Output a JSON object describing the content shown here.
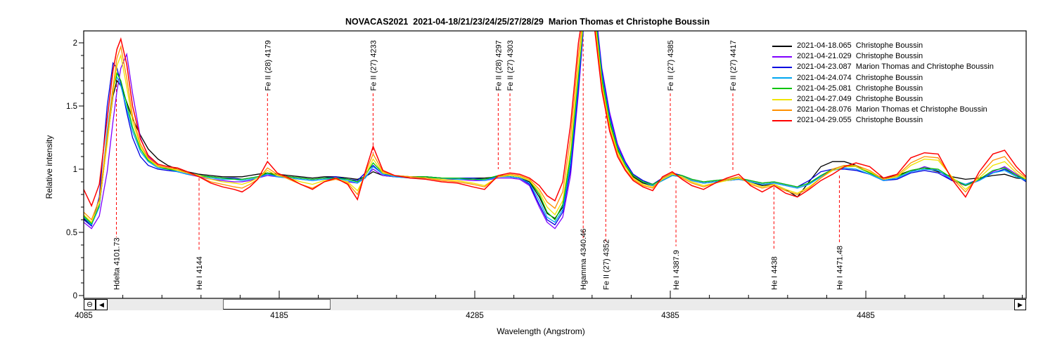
{
  "title": "NOVACAS2021  2021-04-18/21/23/24/25/27/28/29  Marion Thomas et Christophe Boussin",
  "y_axis": {
    "label": "Relative intensity",
    "ticks": [
      0,
      0.5,
      1,
      1.5,
      2
    ]
  },
  "x_axis": {
    "label": "Wavelength (Angstrom)",
    "ticks": [
      4085,
      4185,
      4285,
      4385,
      4485
    ]
  },
  "legend": {
    "entries": [
      {
        "text": "2021-04-18.065  Christophe Boussin",
        "color": "#000000"
      },
      {
        "text": "2021-04-21.029  Christophe Boussin",
        "color": "#7f00ff"
      },
      {
        "text": "2021-04-23.087  Marion Thomas and Christophe Boussin",
        "color": "#0000e0"
      },
      {
        "text": "2021-04-24.074  Christophe Boussin",
        "color": "#00a6f0"
      },
      {
        "text": "2021-04-25.081  Christophe Boussin",
        "color": "#00c400"
      },
      {
        "text": "2021-04-27.049  Christophe Boussin",
        "color": "#efe400"
      },
      {
        "text": "2021-04-28.076  Marion Thomas et Christophe Boussin",
        "color": "#ff9000"
      },
      {
        "text": "2021-04-29.055  Christophe Boussin",
        "color": "#ff0000"
      }
    ]
  },
  "scrollbar": {
    "zoom_out_glyph": "⊖",
    "left_glyph": "◀",
    "right_glyph": "▶"
  },
  "chart_data": {
    "type": "line",
    "title": "NOVACAS2021  2021-04-18/21/23/24/25/27/28/29  Marion Thomas et Christophe Boussin",
    "xlabel": "Wavelength (Angstrom)",
    "ylabel": "Relative intensity",
    "xlim": [
      4085,
      4567
    ],
    "ylim": [
      0,
      2.09
    ],
    "x_minor_step": 20,
    "x_major_step": 100,
    "y_minor_step": 0.1,
    "y_major_step": 0.5,
    "grid": false,
    "legend_position": "upper right",
    "x": [
      4085,
      4089,
      4093,
      4097,
      4100,
      4102,
      4104,
      4107,
      4110,
      4114,
      4118,
      4123,
      4128,
      4133,
      4138,
      4144,
      4150,
      4156,
      4162,
      4166,
      4170,
      4174,
      4179,
      4184,
      4190,
      4196,
      4202,
      4208,
      4214,
      4220,
      4225,
      4229,
      4233,
      4238,
      4244,
      4252,
      4260,
      4268,
      4276,
      4284,
      4290,
      4297,
      4303,
      4308,
      4313,
      4318,
      4322,
      4326,
      4330,
      4334,
      4338,
      4342,
      4346,
      4350,
      4354,
      4358,
      4362,
      4366,
      4371,
      4376,
      4381,
      4386,
      4391,
      4396,
      4402,
      4408,
      4414,
      4420,
      4426,
      4432,
      4438,
      4444,
      4450,
      4456,
      4462,
      4468,
      4474,
      4480,
      4487,
      4494,
      4501,
      4508,
      4515,
      4522,
      4529,
      4536,
      4543,
      4550,
      4556,
      4562,
      4567
    ],
    "series": [
      {
        "name": "2021-04-18.065  Christophe Boussin",
        "color": "#000000",
        "width": 1.3,
        "values": [
          0.61,
          0.56,
          0.71,
          1.22,
          1.58,
          1.7,
          1.66,
          1.53,
          1.4,
          1.27,
          1.16,
          1.08,
          1.03,
          1.0,
          0.98,
          0.96,
          0.95,
          0.94,
          0.94,
          0.94,
          0.95,
          0.96,
          0.97,
          0.96,
          0.95,
          0.94,
          0.93,
          0.94,
          0.94,
          0.93,
          0.92,
          0.94,
          0.98,
          0.95,
          0.94,
          0.94,
          0.94,
          0.93,
          0.93,
          0.93,
          0.93,
          0.94,
          0.94,
          0.93,
          0.9,
          0.78,
          0.65,
          0.61,
          0.7,
          1.05,
          1.7,
          2.4,
          2.28,
          1.7,
          1.36,
          1.15,
          1.02,
          0.94,
          0.89,
          0.87,
          0.91,
          0.95,
          0.94,
          0.91,
          0.89,
          0.9,
          0.91,
          0.92,
          0.9,
          0.87,
          0.88,
          0.84,
          0.78,
          0.9,
          1.02,
          1.06,
          1.06,
          1.03,
          0.97,
          0.93,
          0.95,
          0.99,
          1.01,
          0.98,
          0.94,
          0.92,
          0.93,
          0.95,
          0.96,
          0.93,
          0.92
        ]
      },
      {
        "name": "2021-04-21.029  Christophe Boussin",
        "color": "#7f00ff",
        "width": 1.3,
        "values": [
          0.58,
          0.53,
          0.63,
          0.98,
          1.38,
          1.62,
          1.8,
          1.91,
          1.6,
          1.25,
          1.1,
          1.03,
          1.0,
          0.98,
          0.96,
          0.94,
          0.92,
          0.91,
          0.9,
          0.9,
          0.91,
          0.93,
          0.95,
          0.94,
          0.93,
          0.92,
          0.91,
          0.92,
          0.92,
          0.9,
          0.89,
          0.94,
          1.0,
          0.95,
          0.94,
          0.93,
          0.93,
          0.92,
          0.92,
          0.91,
          0.91,
          0.93,
          0.93,
          0.92,
          0.87,
          0.7,
          0.58,
          0.53,
          0.62,
          0.95,
          1.6,
          2.4,
          2.38,
          1.8,
          1.45,
          1.2,
          1.06,
          0.96,
          0.91,
          0.88,
          0.92,
          0.96,
          0.94,
          0.91,
          0.89,
          0.9,
          0.91,
          0.92,
          0.9,
          0.88,
          0.89,
          0.87,
          0.85,
          0.88,
          0.95,
          0.99,
          1.01,
          1.0,
          0.96,
          0.91,
          0.93,
          0.98,
          1.02,
          0.99,
          0.91,
          0.87,
          0.91,
          0.98,
          1.02,
          0.96,
          0.91
        ]
      },
      {
        "name": "2021-04-23.087  Marion Thomas and Christophe Boussin",
        "color": "#0000e0",
        "width": 1.3,
        "values": [
          0.6,
          0.55,
          0.78,
          1.5,
          1.84,
          1.8,
          1.68,
          1.45,
          1.25,
          1.1,
          1.03,
          1.0,
          0.99,
          0.98,
          0.96,
          0.95,
          0.94,
          0.93,
          0.93,
          0.92,
          0.93,
          0.94,
          0.96,
          0.95,
          0.94,
          0.93,
          0.92,
          0.93,
          0.94,
          0.92,
          0.91,
          0.97,
          1.03,
          0.96,
          0.95,
          0.94,
          0.94,
          0.93,
          0.93,
          0.93,
          0.92,
          0.94,
          0.94,
          0.93,
          0.88,
          0.72,
          0.6,
          0.56,
          0.66,
          1.0,
          1.65,
          2.4,
          2.35,
          1.78,
          1.42,
          1.18,
          1.05,
          0.96,
          0.91,
          0.88,
          0.93,
          0.97,
          0.95,
          0.92,
          0.9,
          0.91,
          0.92,
          0.93,
          0.91,
          0.89,
          0.9,
          0.88,
          0.86,
          0.91,
          0.98,
          1.0,
          1.0,
          0.99,
          0.96,
          0.91,
          0.92,
          0.97,
          0.99,
          0.97,
          0.91,
          0.88,
          0.92,
          0.97,
          1.0,
          0.95,
          0.9
        ]
      },
      {
        "name": "2021-04-24.074  Christophe Boussin",
        "color": "#00a6f0",
        "width": 1.3,
        "values": [
          0.62,
          0.56,
          0.7,
          1.3,
          1.65,
          1.73,
          1.66,
          1.48,
          1.3,
          1.14,
          1.06,
          1.01,
          1.0,
          0.98,
          0.96,
          0.95,
          0.93,
          0.92,
          0.92,
          0.91,
          0.92,
          0.93,
          0.96,
          0.94,
          0.93,
          0.92,
          0.91,
          0.92,
          0.93,
          0.91,
          0.89,
          0.93,
          1.02,
          0.96,
          0.94,
          0.93,
          0.93,
          0.93,
          0.92,
          0.92,
          0.91,
          0.94,
          0.94,
          0.93,
          0.89,
          0.75,
          0.62,
          0.58,
          0.68,
          1.05,
          1.7,
          2.4,
          2.32,
          1.75,
          1.4,
          1.17,
          1.04,
          0.95,
          0.9,
          0.87,
          0.91,
          0.95,
          0.94,
          0.91,
          0.89,
          0.9,
          0.91,
          0.92,
          0.9,
          0.88,
          0.89,
          0.87,
          0.85,
          0.88,
          0.94,
          0.99,
          1.01,
          1.0,
          0.96,
          0.91,
          0.93,
          0.98,
          1.0,
          0.99,
          0.92,
          0.88,
          0.91,
          0.97,
          0.99,
          0.94,
          0.91
        ]
      },
      {
        "name": "2021-04-25.081  Christophe Boussin",
        "color": "#00c400",
        "width": 1.3,
        "values": [
          0.63,
          0.57,
          0.72,
          1.25,
          1.62,
          1.76,
          1.7,
          1.52,
          1.33,
          1.16,
          1.07,
          1.02,
          1.0,
          0.99,
          0.97,
          0.95,
          0.94,
          0.93,
          0.92,
          0.92,
          0.93,
          0.94,
          0.97,
          0.95,
          0.94,
          0.93,
          0.92,
          0.93,
          0.93,
          0.92,
          0.9,
          0.95,
          1.05,
          0.97,
          0.95,
          0.94,
          0.94,
          0.93,
          0.93,
          0.92,
          0.92,
          0.95,
          0.95,
          0.94,
          0.91,
          0.8,
          0.66,
          0.6,
          0.72,
          1.1,
          1.75,
          2.4,
          2.3,
          1.72,
          1.38,
          1.16,
          1.03,
          0.95,
          0.9,
          0.88,
          0.92,
          0.96,
          0.95,
          0.92,
          0.9,
          0.91,
          0.92,
          0.93,
          0.91,
          0.89,
          0.9,
          0.88,
          0.86,
          0.89,
          0.95,
          1.0,
          1.03,
          1.02,
          0.97,
          0.92,
          0.94,
          0.99,
          1.01,
          1.0,
          0.93,
          0.87,
          0.92,
          0.99,
          1.01,
          0.95,
          0.92
        ]
      },
      {
        "name": "2021-04-27.049  Christophe Boussin",
        "color": "#efe400",
        "width": 1.3,
        "values": [
          0.64,
          0.58,
          0.73,
          1.2,
          1.6,
          1.82,
          1.9,
          1.65,
          1.38,
          1.18,
          1.08,
          1.02,
          1.01,
          0.99,
          0.97,
          0.95,
          0.92,
          0.9,
          0.89,
          0.88,
          0.9,
          0.93,
          0.99,
          0.95,
          0.93,
          0.9,
          0.88,
          0.91,
          0.92,
          0.9,
          0.83,
          0.95,
          1.08,
          0.97,
          0.95,
          0.94,
          0.93,
          0.92,
          0.91,
          0.89,
          0.87,
          0.94,
          0.95,
          0.94,
          0.91,
          0.82,
          0.7,
          0.64,
          0.75,
          1.15,
          1.8,
          2.4,
          2.25,
          1.68,
          1.35,
          1.14,
          1.02,
          0.93,
          0.88,
          0.86,
          0.92,
          0.96,
          0.94,
          0.9,
          0.87,
          0.89,
          0.91,
          0.93,
          0.89,
          0.86,
          0.88,
          0.84,
          0.81,
          0.86,
          0.93,
          0.99,
          1.02,
          1.02,
          0.98,
          0.92,
          0.94,
          1.03,
          1.08,
          1.07,
          0.94,
          0.84,
          0.93,
          1.03,
          1.06,
          0.97,
          0.92
        ]
      },
      {
        "name": "2021-04-28.076  Marion Thomas et Christophe Boussin",
        "color": "#ff9000",
        "width": 1.3,
        "values": [
          0.66,
          0.6,
          0.76,
          1.25,
          1.65,
          1.88,
          1.97,
          1.72,
          1.42,
          1.2,
          1.09,
          1.03,
          1.01,
          1.0,
          0.97,
          0.94,
          0.9,
          0.88,
          0.86,
          0.85,
          0.88,
          0.92,
          1.01,
          0.96,
          0.92,
          0.88,
          0.85,
          0.9,
          0.92,
          0.89,
          0.8,
          0.97,
          1.12,
          0.98,
          0.95,
          0.94,
          0.93,
          0.91,
          0.9,
          0.88,
          0.86,
          0.94,
          0.96,
          0.95,
          0.92,
          0.84,
          0.74,
          0.69,
          0.82,
          1.25,
          1.9,
          2.4,
          2.2,
          1.65,
          1.32,
          1.12,
          1.0,
          0.92,
          0.87,
          0.85,
          0.93,
          0.97,
          0.93,
          0.89,
          0.86,
          0.89,
          0.92,
          0.94,
          0.88,
          0.85,
          0.87,
          0.83,
          0.8,
          0.85,
          0.93,
          1.0,
          1.03,
          1.03,
          0.99,
          0.92,
          0.95,
          1.05,
          1.1,
          1.09,
          0.93,
          0.82,
          0.95,
          1.07,
          1.1,
          0.99,
          0.93
        ]
      },
      {
        "name": "2021-04-29.055  Christophe Boussin",
        "color": "#ff0000",
        "width": 1.5,
        "values": [
          0.84,
          0.71,
          0.88,
          1.4,
          1.78,
          1.95,
          2.03,
          1.83,
          1.5,
          1.24,
          1.11,
          1.04,
          1.02,
          1.01,
          0.98,
          0.94,
          0.89,
          0.86,
          0.84,
          0.82,
          0.86,
          0.92,
          1.06,
          0.97,
          0.93,
          0.88,
          0.84,
          0.9,
          0.93,
          0.88,
          0.76,
          0.98,
          1.18,
          0.99,
          0.95,
          0.93,
          0.92,
          0.9,
          0.89,
          0.86,
          0.84,
          0.95,
          0.97,
          0.96,
          0.93,
          0.87,
          0.79,
          0.75,
          0.9,
          1.35,
          2.0,
          2.4,
          2.15,
          1.62,
          1.3,
          1.1,
          0.99,
          0.91,
          0.86,
          0.83,
          0.94,
          0.98,
          0.92,
          0.87,
          0.84,
          0.89,
          0.93,
          0.96,
          0.87,
          0.82,
          0.87,
          0.81,
          0.78,
          0.84,
          0.91,
          0.96,
          1.02,
          1.05,
          1.02,
          0.93,
          0.96,
          1.09,
          1.13,
          1.12,
          0.92,
          0.78,
          0.98,
          1.12,
          1.15,
          1.02,
          0.94
        ]
      }
    ],
    "annotations": [
      {
        "label": "Hdelta 4101.73",
        "wavelength": 4101.73,
        "side": "bottom",
        "line_from": 1.75,
        "line_to": 0.46
      },
      {
        "label": "He I 4144",
        "wavelength": 4144.0,
        "side": "bottom",
        "line_from": 0.93,
        "line_to": 0.36
      },
      {
        "label": "Fe II (28) 4179",
        "wavelength": 4179.0,
        "side": "top",
        "line_from": 1.6,
        "line_to": 1.08
      },
      {
        "label": "Fe II (27) 4233",
        "wavelength": 4233.0,
        "side": "top",
        "line_from": 1.6,
        "line_to": 1.12
      },
      {
        "label": "Fe II (28) 4297",
        "wavelength": 4297.0,
        "side": "top",
        "line_from": 1.6,
        "line_to": 1.0
      },
      {
        "label": "Fe II (27) 4303",
        "wavelength": 4303.0,
        "side": "top",
        "line_from": 1.6,
        "line_to": 1.0
      },
      {
        "label": "Hgamma 4340.46",
        "wavelength": 4340.46,
        "side": "bottom",
        "line_from": 2.07,
        "line_to": 0.44
      },
      {
        "label": "Fe II (27) 4352",
        "wavelength": 4352.0,
        "side": "bottom",
        "line_from": 1.5,
        "line_to": 0.41
      },
      {
        "label": "Fe II (27) 4385",
        "wavelength": 4385.0,
        "side": "top",
        "line_from": 1.6,
        "line_to": 1.01
      },
      {
        "label": "He I 4387.9",
        "wavelength": 4387.9,
        "side": "bottom",
        "line_from": 0.91,
        "line_to": 0.39
      },
      {
        "label": "Fe II (27) 4417",
        "wavelength": 4417.0,
        "side": "top",
        "line_from": 1.6,
        "line_to": 0.99
      },
      {
        "label": "He I 4438",
        "wavelength": 4438.0,
        "side": "bottom",
        "line_from": 0.86,
        "line_to": 0.36
      },
      {
        "label": "He I 4471.48",
        "wavelength": 4471.48,
        "side": "bottom",
        "line_from": 0.95,
        "line_to": 0.41
      }
    ],
    "annotation_color": "#ff0000"
  }
}
